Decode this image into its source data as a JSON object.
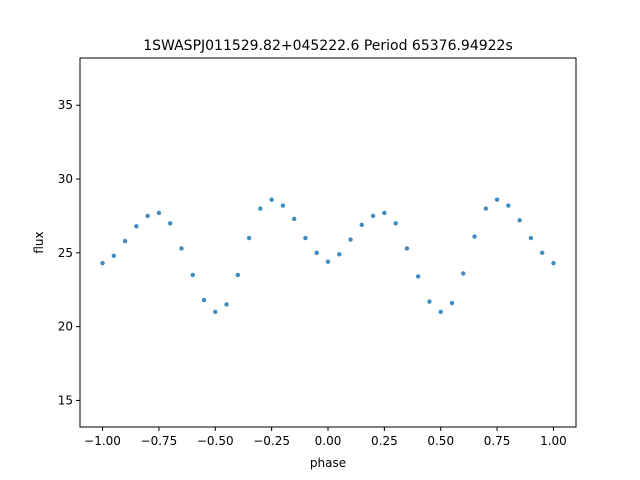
{
  "chart_data": {
    "type": "scatter",
    "title": "1SWASPJ011529.82+045222.6 Period 65376.94922s",
    "xlabel": "phase",
    "ylabel": "flux",
    "xlim": [
      -1.1,
      1.1
    ],
    "ylim": [
      13.2,
      38.2
    ],
    "xticks": [
      -1.0,
      -0.75,
      -0.5,
      -0.25,
      0.0,
      0.25,
      0.5,
      0.75,
      1.0
    ],
    "xtick_labels": [
      "−1.00",
      "−0.75",
      "−0.50",
      "−0.25",
      "0.00",
      "0.25",
      "0.50",
      "0.75",
      "1.00"
    ],
    "yticks": [
      15,
      20,
      25,
      30,
      35
    ],
    "ytick_labels": [
      "15",
      "20",
      "25",
      "30",
      "35"
    ],
    "grid": false,
    "marker_color": "#1f77b4",
    "series": [
      {
        "x": [
          -1.0,
          -0.95,
          -0.9,
          -0.85,
          -0.8,
          -0.75,
          -0.7,
          -0.65,
          -0.6,
          -0.55,
          -0.5,
          -0.45,
          -0.4,
          -0.35,
          -0.3,
          -0.25,
          -0.2,
          -0.15,
          -0.1,
          -0.05,
          0.0,
          0.05,
          0.1,
          0.15,
          0.2,
          0.25,
          0.3,
          0.35,
          0.4,
          0.45,
          0.5,
          0.55,
          0.6,
          0.65,
          0.7,
          0.75,
          0.8,
          0.85,
          0.9,
          0.95,
          1.0
        ],
        "y": [
          24.3,
          24.8,
          25.8,
          26.8,
          27.5,
          27.7,
          27.0,
          25.3,
          23.5,
          21.8,
          21.0,
          21.5,
          23.5,
          26.0,
          28.0,
          28.6,
          28.2,
          27.3,
          26.0,
          25.0,
          24.4,
          24.9,
          25.9,
          26.9,
          27.5,
          27.7,
          27.0,
          25.3,
          23.4,
          21.7,
          21.0,
          21.6,
          23.6,
          26.1,
          28.0,
          28.6,
          28.2,
          27.2,
          26.0,
          25.0,
          24.3
        ]
      }
    ]
  }
}
